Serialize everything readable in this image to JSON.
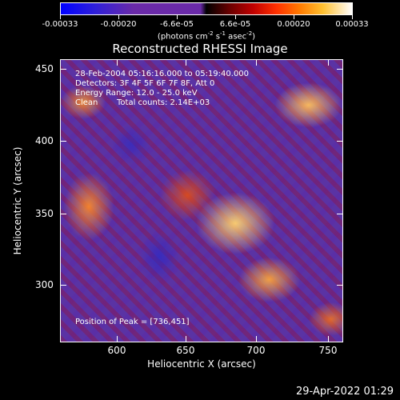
{
  "colorbar": {
    "labels": [
      "-0.00033",
      "-0.00020",
      "-6.6e-05",
      "6.6e-05",
      "0.00020",
      "0.00033"
    ],
    "units_prefix": "(photons cm",
    "units_sup1": "-2",
    "units_mid": " s",
    "units_sup2": "-1",
    "units_mid2": " asec",
    "units_sup3": "-2",
    "units_suffix": ")"
  },
  "title": "Reconstructed RHESSI Image",
  "overlay": {
    "line1": "28-Feb-2004 05:16:16.000 to 05:19:40.000",
    "line2": "Detectors: 3F 4F 5F 6F 7F 8F, Att 0",
    "line3": "Energy Range: 12.0 - 25.0 keV",
    "line4_left": "Clean",
    "line4_right": "Total counts: 2.14E+03",
    "peak": "Position of Peak = [736,451]"
  },
  "x_axis": {
    "title": "Heliocentric X (arcsec)",
    "ticks": [
      "600",
      "650",
      "700",
      "750"
    ]
  },
  "y_axis": {
    "title": "Heliocentric Y (arcsec)",
    "ticks": [
      "450",
      "400",
      "350",
      "300"
    ]
  },
  "timestamp": "29-Apr-2022 01:29",
  "colors": {
    "background": "#000000",
    "colormap_low": "#0000ff",
    "colormap_mid": "#000000",
    "colormap_high": "#ffffff"
  }
}
